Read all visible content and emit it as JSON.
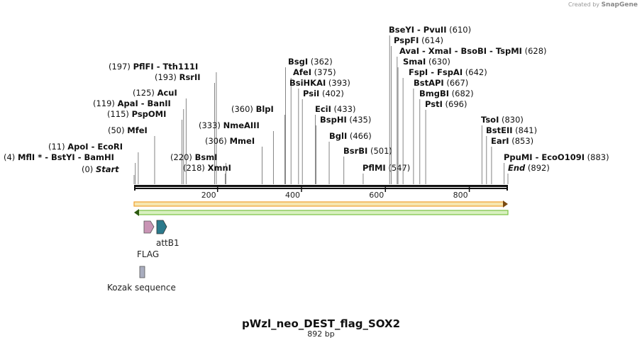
{
  "credit": {
    "prefix": "Created by",
    "brand": "SnapGene"
  },
  "plasmid": {
    "name": "pWzl_neo_DEST_flag_SOX2",
    "length_label": "892 bp",
    "length": 892
  },
  "scale": {
    "start": 1,
    "end": 892
  },
  "ticks": [
    200,
    400,
    600,
    800
  ],
  "sites": [
    {
      "pos_label": "(0)",
      "name": "Start",
      "italic": true,
      "pos": 1
    },
    {
      "pos_label": "(4)",
      "name": "MflI * - BstYI - BamHI",
      "pos": 4
    },
    {
      "pos_label": "(11)",
      "name": "ApoI - EcoRI",
      "pos": 11
    },
    {
      "pos_label": "(50)",
      "name": "MfeI",
      "pos": 50
    },
    {
      "pos_label": "(115)",
      "name": "PspOMI",
      "pos": 115
    },
    {
      "pos_label": "(119)",
      "name": "ApaI - BanII",
      "pos": 119
    },
    {
      "pos_label": "(125)",
      "name": "AcuI",
      "pos": 125
    },
    {
      "pos_label": "(193)",
      "name": "RsrII",
      "pos": 193
    },
    {
      "pos_label": "(197)",
      "name": "PflFI - Tth111I",
      "pos": 197
    },
    {
      "pos_label": "(218)",
      "name": "XmnI",
      "pos": 218
    },
    {
      "pos_label": "(220)",
      "name": "BsmI",
      "pos": 220
    },
    {
      "pos_label": "(306)",
      "name": "MmeI",
      "pos": 306
    },
    {
      "pos_label": "(333)",
      "name": "NmeAIII",
      "pos": 333
    },
    {
      "pos_label": "(360)",
      "name": "BlpI",
      "pos": 360
    },
    {
      "pos_label": "(362)",
      "name": "BsgI",
      "pos": 362
    },
    {
      "pos_label": "(375)",
      "name": "AfeI",
      "pos": 375
    },
    {
      "pos_label": "(393)",
      "name": "BsiHKAI",
      "pos": 393
    },
    {
      "pos_label": "(402)",
      "name": "PsiI",
      "pos": 402
    },
    {
      "pos_label": "(433)",
      "name": "EciI",
      "pos": 433
    },
    {
      "pos_label": "(435)",
      "name": "BspHI",
      "pos": 435
    },
    {
      "pos_label": "(466)",
      "name": "BglI",
      "pos": 466
    },
    {
      "pos_label": "(501)",
      "name": "BsrBI",
      "pos": 501
    },
    {
      "pos_label": "(547)",
      "name": "PflMI",
      "pos": 547
    },
    {
      "pos_label": "(610)",
      "name": "BseYI - PvuII",
      "pos": 610
    },
    {
      "pos_label": "(614)",
      "name": "PspFI",
      "pos": 614
    },
    {
      "pos_label": "(628)",
      "name": "AvaI - XmaI - BsoBI - TspMI",
      "pos": 628
    },
    {
      "pos_label": "(630)",
      "name": "SmaI",
      "pos": 630
    },
    {
      "pos_label": "(642)",
      "name": "FspI - FspAI",
      "pos": 642
    },
    {
      "pos_label": "(667)",
      "name": "BstAPI",
      "pos": 667
    },
    {
      "pos_label": "(682)",
      "name": "BmgBI",
      "pos": 682
    },
    {
      "pos_label": "(696)",
      "name": "PstI",
      "pos": 696
    },
    {
      "pos_label": "(830)",
      "name": "TsoI",
      "pos": 830
    },
    {
      "pos_label": "(841)",
      "name": "BstEII",
      "pos": 841
    },
    {
      "pos_label": "(853)",
      "name": "EarI",
      "pos": 853
    },
    {
      "pos_label": "(883)",
      "name": "PpuMI - EcoO109I",
      "pos": 883
    },
    {
      "pos_label": "(892)",
      "name": "End",
      "italic": true,
      "pos": 892
    }
  ],
  "features": [
    {
      "name": "FLAG",
      "color": "#c994b5"
    },
    {
      "name": "attB1",
      "color": "#2b7a8c"
    },
    {
      "name": "Kozak sequence",
      "color": "#a9adbf"
    }
  ],
  "colors": {
    "forward_arrow": "#f0a030",
    "forward_fill": "#f7e7b0",
    "reverse_arrow": "#7ac142",
    "reverse_fill": "#d8f0c0"
  }
}
